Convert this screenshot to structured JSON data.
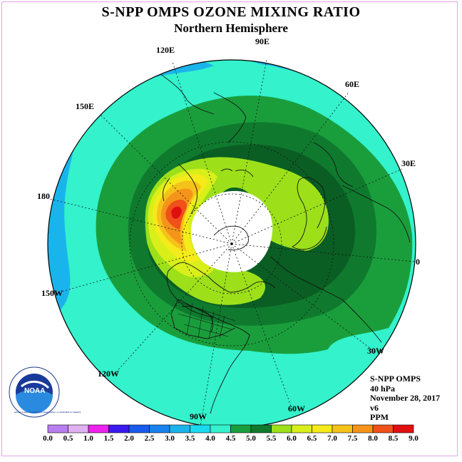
{
  "header": {
    "title": "S-NPP OMPS OZONE MIXING RATIO",
    "subtitle": "Northern Hemisphere"
  },
  "map": {
    "projection": "north polar stereographic",
    "longitude_labels": {
      "lon_120e": "120E",
      "lon_90e": "90E",
      "lon_60e": "60E",
      "lon_150e": "150E",
      "lon_30e": "30E",
      "lon_180": "180",
      "lon_0": "0",
      "lon_150w": "150W",
      "lon_30w": "30W",
      "lon_120w": "120W",
      "lon_60w": "60W",
      "lon_90w": "90W"
    },
    "contour_colors": {
      "3.5-4.0": "#33f2cc",
      "4.0-4.5": "#1a9e3c",
      "4.5-5.0": "#0f7a2e",
      "5.0-5.5": "#0a5e24",
      "5.5-6.0": "#9de01a",
      "6.0-6.5": "#d8ef1a",
      "6.5-7.0": "#f5ea1a",
      "7.0-7.5": "#f5c21a",
      "7.5-8.0": "#f5941a",
      "8.0-8.5": "#f0501a",
      "8.5-9.0": "#e01010",
      "3.0-3.5": "#1ab4ec",
      "missing": "#ffffff"
    }
  },
  "info": {
    "instrument": "S-NPP OMPS",
    "level": "40 hPa",
    "date": "November 28, 2017",
    "version": "v6",
    "units": "PPM"
  },
  "colorbar": {
    "ticks": [
      "0.0",
      "0.5",
      "1.0",
      "1.5",
      "2.0",
      "2.5",
      "3.0",
      "3.5",
      "4.0",
      "4.5",
      "5.0",
      "5.5",
      "6.0",
      "6.5",
      "7.0",
      "7.5",
      "8.0",
      "8.5",
      "9.0"
    ],
    "colors": [
      "#b87ef0",
      "#e0b0f0",
      "#ee22ee",
      "#3a1aee",
      "#1a5aee",
      "#1a82ee",
      "#1ab4ec",
      "#1adaf0",
      "#33f2cc",
      "#1a9e3c",
      "#0f7a2e",
      "#9de01a",
      "#d8ef1a",
      "#f5ea1a",
      "#f5c21a",
      "#f5941a",
      "#f0501a",
      "#e01010",
      "#8a5a3a"
    ]
  },
  "logo": {
    "text": "NOAA",
    "ring_text": "NATIONAL OCEANIC AND ATMOSPHERIC ADMINISTRATION · U.S. DEPARTMENT OF COMMERCE"
  }
}
